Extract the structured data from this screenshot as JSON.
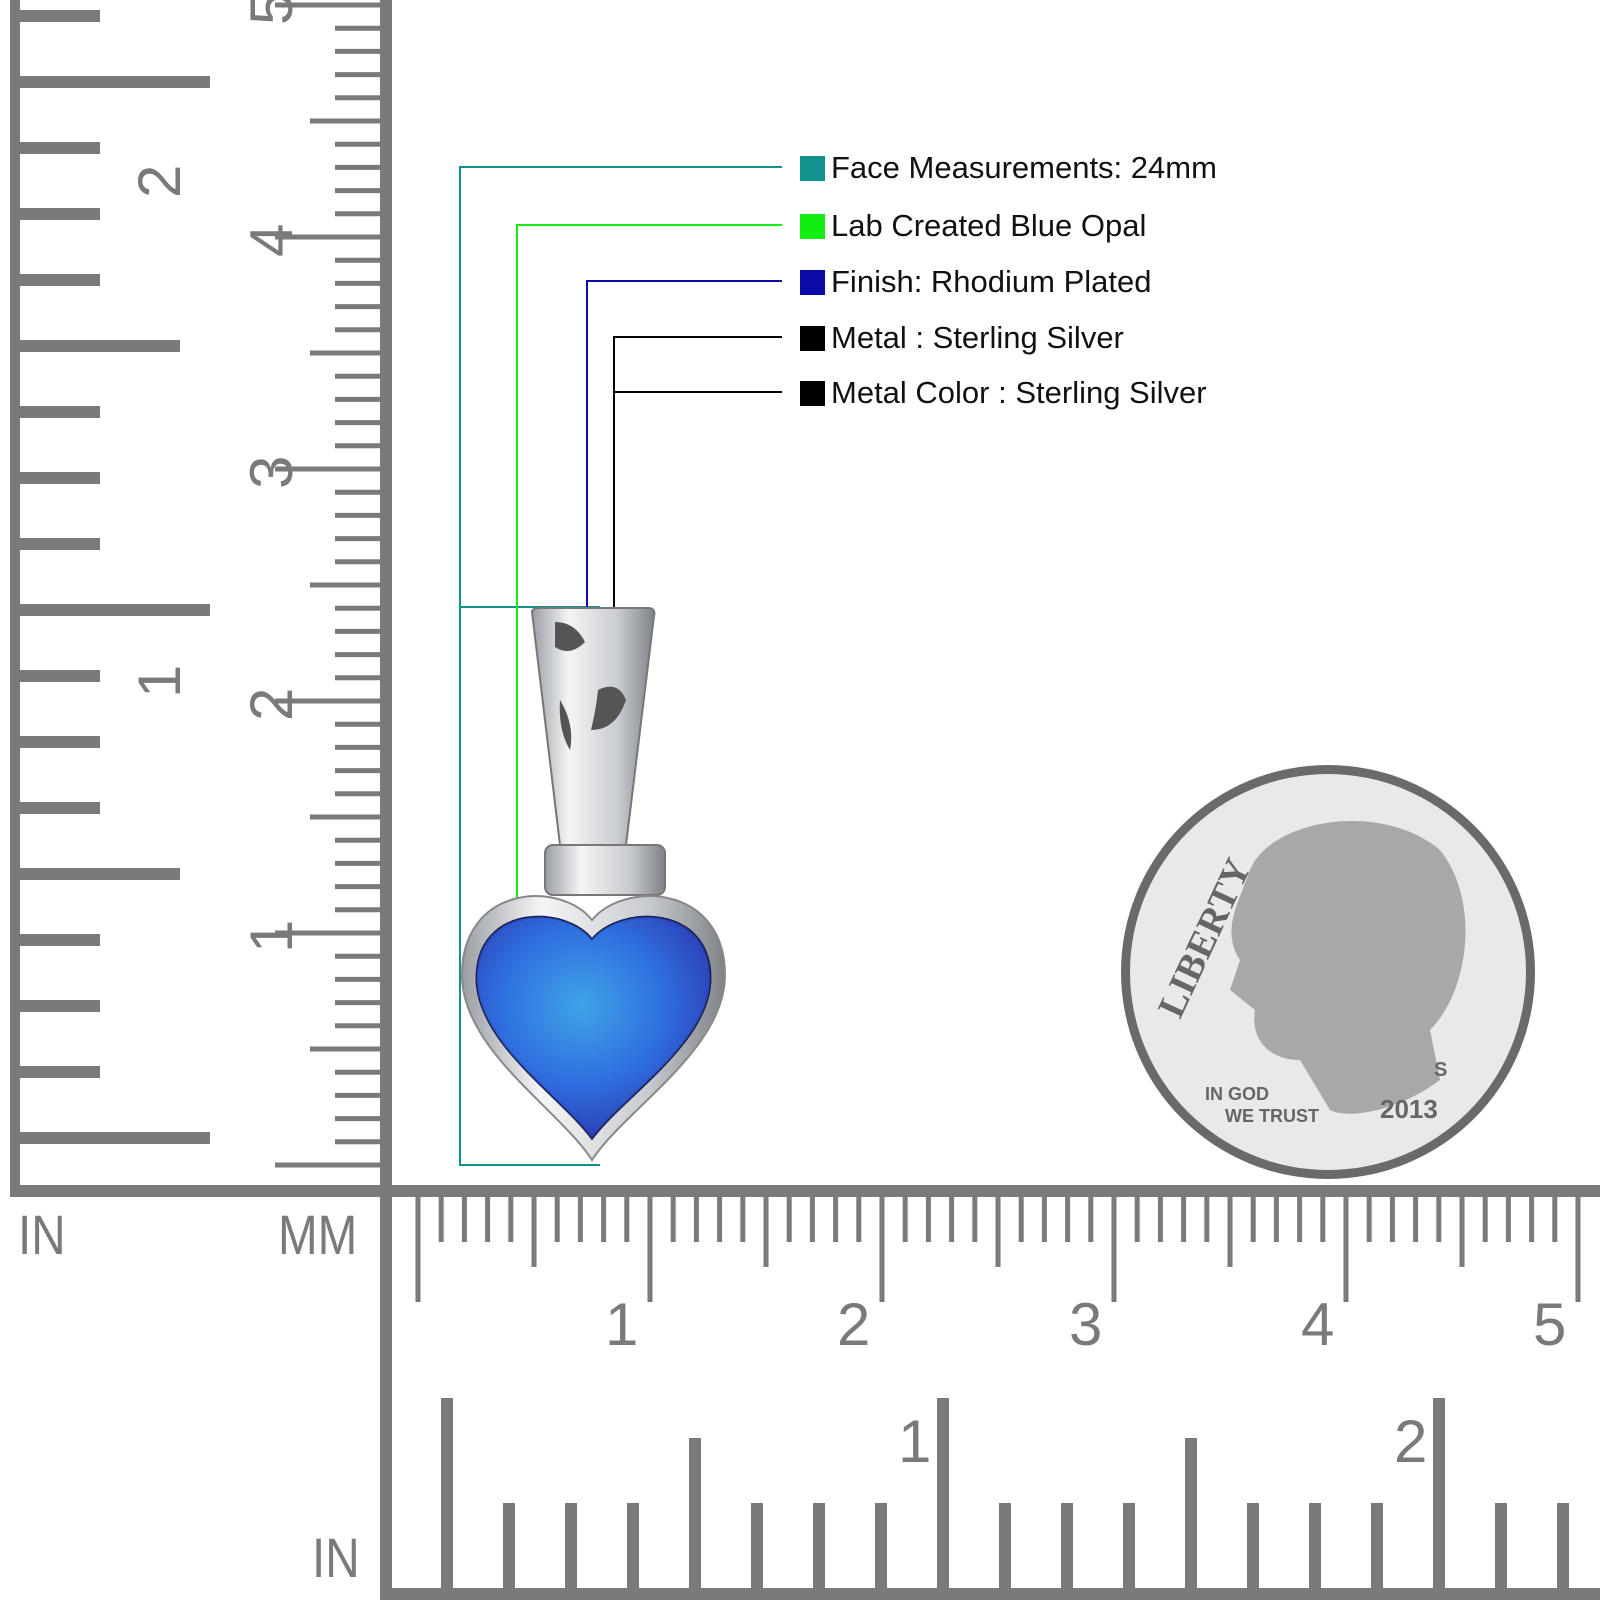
{
  "legend": [
    {
      "label": "Face Measurements: 24mm",
      "color": "#12928f"
    },
    {
      "label": "Lab Created Blue Opal",
      "color": "#11ee11"
    },
    {
      "label": "Finish: Rhodium Plated",
      "color": "#0b0ba8"
    },
    {
      "label": "Metal : Sterling Silver",
      "color": "#000000"
    },
    {
      "label": "Metal Color : Sterling Silver",
      "color": "#000000"
    }
  ],
  "rulers": {
    "left_in_label": "IN",
    "left_mm_label": "MM",
    "bottom_in_label": "IN",
    "mm_numbers": [
      "1",
      "2",
      "3",
      "4",
      "5"
    ],
    "in_numbers": [
      "1",
      "2"
    ],
    "color": "#7a7a7a"
  },
  "coin": {
    "legend_text": "LIBERTY",
    "motto_line1": "IN GOD",
    "motto_line2": "WE TRUST",
    "year": "2013",
    "mint_mark": "S"
  },
  "product": {
    "stone_color": "#2f6fe0",
    "metal_color": "#d9dcdf"
  }
}
